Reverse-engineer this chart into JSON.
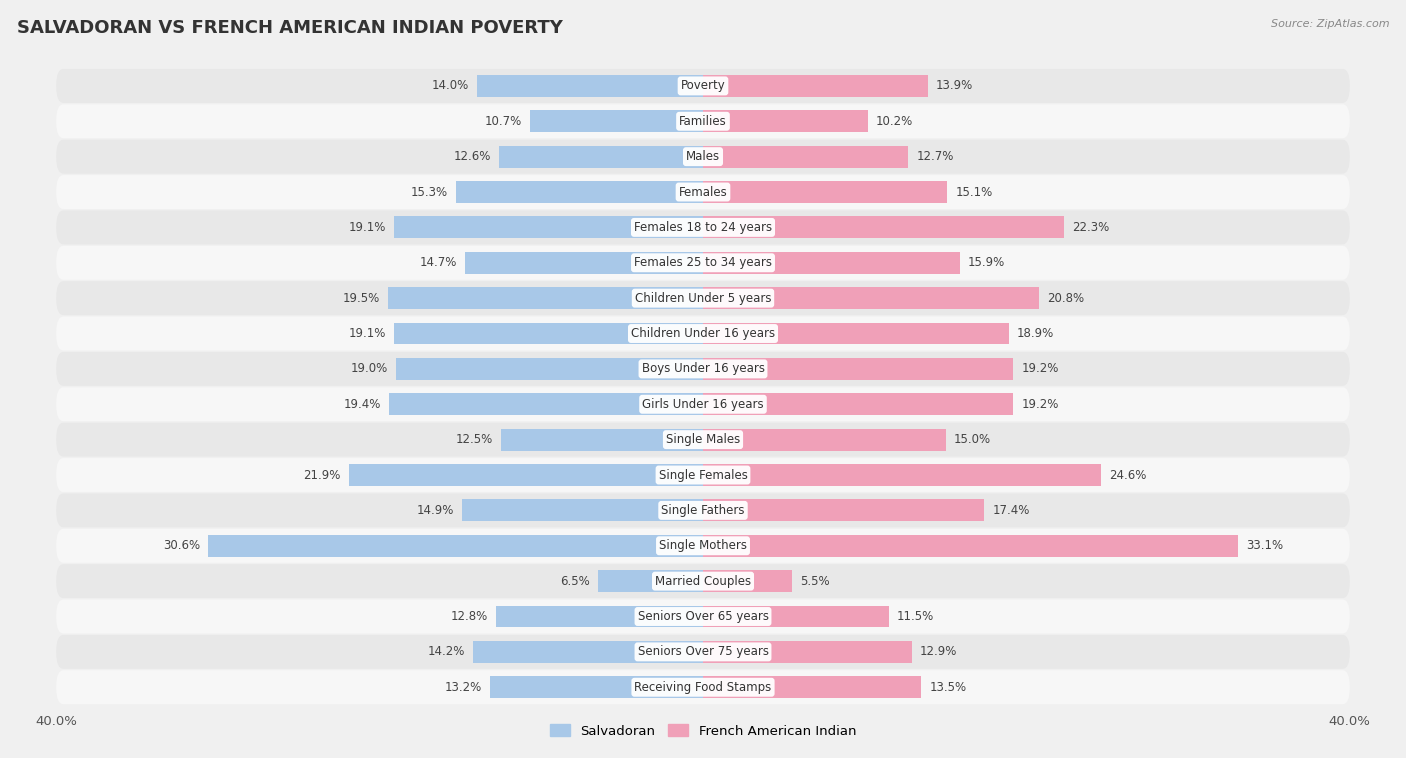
{
  "title": "SALVADORAN VS FRENCH AMERICAN INDIAN POVERTY",
  "source": "Source: ZipAtlas.com",
  "categories": [
    "Poverty",
    "Families",
    "Males",
    "Females",
    "Females 18 to 24 years",
    "Females 25 to 34 years",
    "Children Under 5 years",
    "Children Under 16 years",
    "Boys Under 16 years",
    "Girls Under 16 years",
    "Single Males",
    "Single Females",
    "Single Fathers",
    "Single Mothers",
    "Married Couples",
    "Seniors Over 65 years",
    "Seniors Over 75 years",
    "Receiving Food Stamps"
  ],
  "salvadoran": [
    14.0,
    10.7,
    12.6,
    15.3,
    19.1,
    14.7,
    19.5,
    19.1,
    19.0,
    19.4,
    12.5,
    21.9,
    14.9,
    30.6,
    6.5,
    12.8,
    14.2,
    13.2
  ],
  "french_american_indian": [
    13.9,
    10.2,
    12.7,
    15.1,
    22.3,
    15.9,
    20.8,
    18.9,
    19.2,
    19.2,
    15.0,
    24.6,
    17.4,
    33.1,
    5.5,
    11.5,
    12.9,
    13.5
  ],
  "salvadoran_color": "#a8c8e8",
  "french_color": "#f0a0b8",
  "background_color": "#f0f0f0",
  "row_light": "#f7f7f7",
  "row_dark": "#e8e8e8",
  "axis_max": 40.0,
  "bar_height": 0.62,
  "legend_salvadoran": "Salvadoran",
  "legend_french": "French American Indian",
  "label_fontsize": 8.5,
  "title_fontsize": 13
}
